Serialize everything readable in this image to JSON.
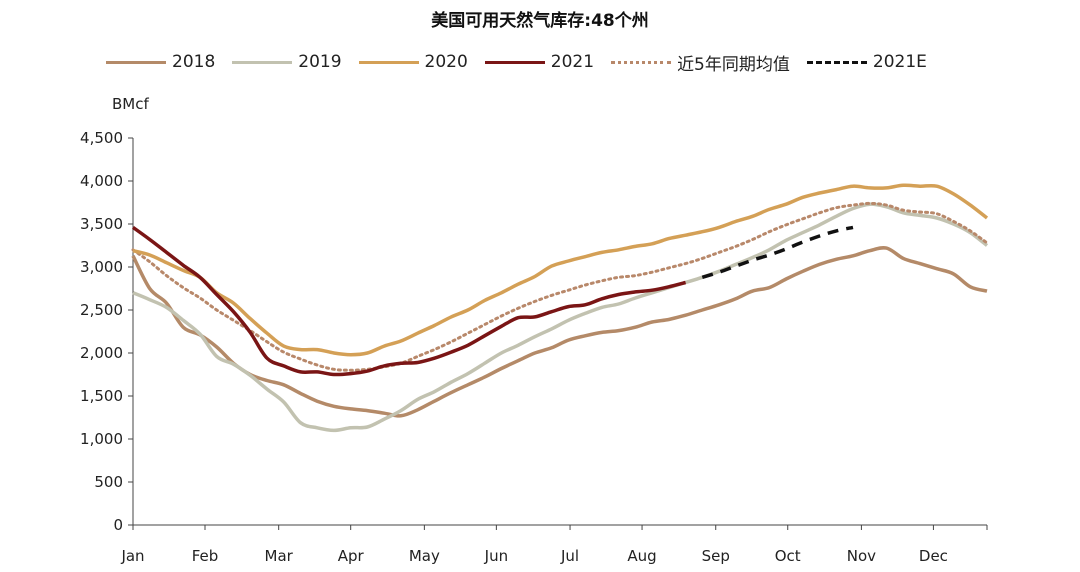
{
  "chart_data": {
    "type": "line",
    "title": "美国可用天然气库存:48个州",
    "ylabel": "BMcf",
    "ylim": [
      0,
      4500
    ],
    "yticks": [
      0,
      500,
      1000,
      1500,
      2000,
      2500,
      3000,
      3500,
      4000,
      4500
    ],
    "ytick_labels": [
      "0",
      "500",
      "1,000",
      "1,500",
      "2,000",
      "2,500",
      "3,000",
      "3,500",
      "4,000",
      "4,500"
    ],
    "xlim": [
      0,
      51
    ],
    "x_unit": "week of year",
    "xtick_labels": [
      "Jan",
      "Feb",
      "Mar",
      "Apr",
      "May",
      "Jun",
      "Jul",
      "Aug",
      "Sep",
      "Oct",
      "Nov",
      "Dec"
    ],
    "xtick_weeks": [
      0,
      4.3,
      8.7,
      13,
      17.4,
      21.7,
      26.1,
      30.4,
      34.8,
      39.1,
      43.5,
      47.8
    ],
    "grid": false,
    "legend_position": "top",
    "series": [
      {
        "name": "2018",
        "color": "#B48A68",
        "style": "solid",
        "x": [
          0,
          1,
          2,
          3,
          4,
          5,
          6,
          7,
          8,
          9,
          10,
          11,
          12,
          13,
          14,
          15,
          16,
          17,
          18,
          19,
          20,
          21,
          22,
          23,
          24,
          25,
          26,
          27,
          28,
          29,
          30,
          31,
          32,
          33,
          34,
          35,
          36,
          37,
          38,
          39,
          40,
          41,
          42,
          43,
          44,
          45,
          46,
          47,
          48,
          49,
          50,
          51
        ],
        "values": [
          3130,
          2750,
          2580,
          2300,
          2210,
          2070,
          1880,
          1750,
          1680,
          1630,
          1530,
          1440,
          1380,
          1350,
          1330,
          1300,
          1270,
          1340,
          1440,
          1540,
          1630,
          1720,
          1820,
          1910,
          2000,
          2060,
          2150,
          2200,
          2240,
          2260,
          2300,
          2360,
          2390,
          2440,
          2500,
          2560,
          2630,
          2720,
          2760,
          2860,
          2950,
          3030,
          3090,
          3130,
          3190,
          3220,
          3100,
          3040,
          2980,
          2920,
          2770,
          2720
        ]
      },
      {
        "name": "2019",
        "color": "#C2C2B0",
        "style": "solid",
        "x": [
          0,
          1,
          2,
          3,
          4,
          5,
          6,
          7,
          8,
          9,
          10,
          11,
          12,
          13,
          14,
          15,
          16,
          17,
          18,
          19,
          20,
          21,
          22,
          23,
          24,
          25,
          26,
          27,
          28,
          29,
          30,
          31,
          32,
          33,
          34,
          35,
          36,
          37,
          38,
          39,
          40,
          41,
          42,
          43,
          44,
          45,
          46,
          47,
          48,
          49,
          50,
          51
        ],
        "values": [
          2700,
          2620,
          2530,
          2380,
          2220,
          1960,
          1870,
          1740,
          1580,
          1430,
          1190,
          1130,
          1100,
          1130,
          1140,
          1230,
          1330,
          1460,
          1550,
          1660,
          1760,
          1880,
          2000,
          2090,
          2190,
          2280,
          2380,
          2460,
          2530,
          2570,
          2640,
          2700,
          2760,
          2820,
          2880,
          2950,
          3030,
          3110,
          3200,
          3310,
          3400,
          3490,
          3590,
          3680,
          3730,
          3700,
          3630,
          3600,
          3570,
          3500,
          3400,
          3250
        ]
      },
      {
        "name": "2020",
        "color": "#D4A056",
        "style": "solid",
        "x": [
          0,
          1,
          2,
          3,
          4,
          5,
          6,
          7,
          8,
          9,
          10,
          11,
          12,
          13,
          14,
          15,
          16,
          17,
          18,
          19,
          20,
          21,
          22,
          23,
          24,
          25,
          26,
          27,
          28,
          29,
          30,
          31,
          32,
          33,
          34,
          35,
          36,
          37,
          38,
          39,
          40,
          41,
          42,
          43,
          44,
          45,
          46,
          47,
          48,
          49,
          50,
          51
        ],
        "values": [
          3190,
          3140,
          3050,
          2960,
          2880,
          2700,
          2580,
          2400,
          2230,
          2080,
          2040,
          2040,
          2000,
          1980,
          2000,
          2080,
          2140,
          2230,
          2320,
          2420,
          2500,
          2610,
          2700,
          2800,
          2890,
          3010,
          3070,
          3120,
          3170,
          3200,
          3240,
          3270,
          3330,
          3370,
          3410,
          3460,
          3530,
          3590,
          3670,
          3730,
          3810,
          3860,
          3900,
          3940,
          3920,
          3920,
          3950,
          3940,
          3940,
          3850,
          3720,
          3570
        ]
      },
      {
        "name": "2021",
        "color": "#7A1515",
        "style": "solid",
        "x": [
          0,
          1,
          2,
          3,
          4,
          5,
          6,
          7,
          8,
          9,
          10,
          11,
          12,
          13,
          14,
          15,
          16,
          17,
          18,
          19,
          20,
          21,
          22,
          23,
          24,
          25,
          26,
          27,
          28,
          29,
          30,
          31,
          32,
          33
        ],
        "values": [
          3460,
          3320,
          3170,
          3020,
          2880,
          2680,
          2480,
          2240,
          1940,
          1850,
          1780,
          1780,
          1750,
          1760,
          1790,
          1850,
          1880,
          1890,
          1940,
          2010,
          2090,
          2200,
          2310,
          2410,
          2420,
          2480,
          2540,
          2560,
          2630,
          2680,
          2710,
          2730,
          2770,
          2820
        ]
      },
      {
        "name": "近5年同期均值",
        "color": "#B8886A",
        "style": "dotted",
        "x": [
          0,
          1,
          2,
          3,
          4,
          5,
          6,
          7,
          8,
          9,
          10,
          11,
          12,
          13,
          14,
          15,
          16,
          17,
          18,
          19,
          20,
          21,
          22,
          23,
          24,
          25,
          26,
          27,
          28,
          29,
          30,
          31,
          32,
          33,
          34,
          35,
          36,
          37,
          38,
          39,
          40,
          41,
          42,
          43,
          44,
          45,
          46,
          47,
          48,
          49,
          50,
          51
        ],
        "values": [
          3200,
          3060,
          2900,
          2760,
          2640,
          2500,
          2380,
          2260,
          2130,
          2010,
          1930,
          1860,
          1810,
          1800,
          1810,
          1840,
          1880,
          1960,
          2040,
          2130,
          2230,
          2330,
          2430,
          2520,
          2600,
          2670,
          2730,
          2790,
          2840,
          2880,
          2900,
          2940,
          2990,
          3040,
          3100,
          3170,
          3240,
          3320,
          3410,
          3490,
          3560,
          3630,
          3690,
          3720,
          3740,
          3720,
          3660,
          3640,
          3620,
          3530,
          3420,
          3280
        ]
      },
      {
        "name": "2021E",
        "color": "#111111",
        "style": "dashed",
        "x": [
          34,
          35,
          36,
          37,
          38,
          39,
          40,
          41,
          42,
          43
        ],
        "values": [
          2880,
          2940,
          3010,
          3080,
          3140,
          3210,
          3290,
          3360,
          3420,
          3460
        ]
      }
    ]
  }
}
